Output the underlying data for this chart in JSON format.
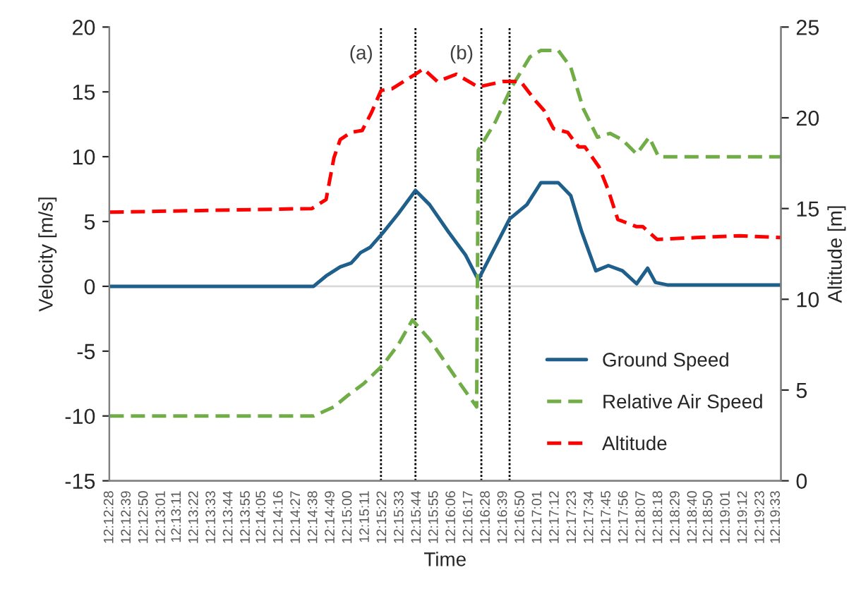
{
  "chart_data": {
    "type": "line",
    "xlabel": "Time",
    "ylabel": "Velocity [m/s]",
    "y2label": "Altitude [m]",
    "xlim": [
      12.20772,
      12.32667
    ],
    "ylim": [
      -15,
      20
    ],
    "yticks": [
      -15,
      -10,
      -5,
      0,
      5,
      10,
      15,
      20
    ],
    "y2lim": [
      0,
      25
    ],
    "y2ticks": [
      0,
      5,
      10,
      15,
      20,
      25
    ],
    "xticks": [
      {
        "value": 12.207778,
        "label": "12:12:28"
      },
      {
        "value": 12.210833,
        "label": "12:12:39"
      },
      {
        "value": 12.213889,
        "label": "12:12:50"
      },
      {
        "value": 12.216944,
        "label": "12:13:01"
      },
      {
        "value": 12.219722,
        "label": "12:13:11"
      },
      {
        "value": 12.222778,
        "label": "12:13:22"
      },
      {
        "value": 12.225833,
        "label": "12:13:33"
      },
      {
        "value": 12.228889,
        "label": "12:13:44"
      },
      {
        "value": 12.231944,
        "label": "12:13:55"
      },
      {
        "value": 12.234722,
        "label": "12:14:05"
      },
      {
        "value": 12.237778,
        "label": "12:14:16"
      },
      {
        "value": 12.240833,
        "label": "12:14:27"
      },
      {
        "value": 12.243889,
        "label": "12:14:38"
      },
      {
        "value": 12.246944,
        "label": "12:14:49"
      },
      {
        "value": 12.25,
        "label": "12:15:00"
      },
      {
        "value": 12.253056,
        "label": "12:15:11"
      },
      {
        "value": 12.256111,
        "label": "12:15:22"
      },
      {
        "value": 12.259167,
        "label": "12:15:33"
      },
      {
        "value": 12.262222,
        "label": "12:15:44"
      },
      {
        "value": 12.265278,
        "label": "12:15:55"
      },
      {
        "value": 12.268333,
        "label": "12:16:06"
      },
      {
        "value": 12.271389,
        "label": "12:16:17"
      },
      {
        "value": 12.274444,
        "label": "12:16:28"
      },
      {
        "value": 12.2775,
        "label": "12:16:39"
      },
      {
        "value": 12.280556,
        "label": "12:16:50"
      },
      {
        "value": 12.283611,
        "label": "12:17:01"
      },
      {
        "value": 12.286667,
        "label": "12:17:12"
      },
      {
        "value": 12.289722,
        "label": "12:17:23"
      },
      {
        "value": 12.292778,
        "label": "12:17:34"
      },
      {
        "value": 12.295833,
        "label": "12:17:45"
      },
      {
        "value": 12.298889,
        "label": "12:17:56"
      },
      {
        "value": 12.301944,
        "label": "12:18:07"
      },
      {
        "value": 12.305,
        "label": "12:18:18"
      },
      {
        "value": 12.308056,
        "label": "12:18:29"
      },
      {
        "value": 12.311111,
        "label": "12:18:40"
      },
      {
        "value": 12.313889,
        "label": "12:18:50"
      },
      {
        "value": 12.316944,
        "label": "12:19:01"
      },
      {
        "value": 12.32,
        "label": "12:19:12"
      },
      {
        "value": 12.323056,
        "label": "12:19:23"
      },
      {
        "value": 12.325833,
        "label": "12:19:33"
      }
    ],
    "series": [
      {
        "name": "Ground Speed",
        "color": "#1f5f8b",
        "line_style": "solid",
        "x": [
          12.20778,
          12.24389,
          12.24611,
          12.24861,
          12.25056,
          12.25222,
          12.25389,
          12.25611,
          12.25889,
          12.26194,
          12.26444,
          12.26778,
          12.27083,
          12.27306,
          12.27861,
          12.28167,
          12.28417,
          12.28722,
          12.28944,
          12.29139,
          12.29389,
          12.29611,
          12.29861,
          12.30111,
          12.30306,
          12.30444,
          12.30667,
          12.32667
        ],
        "values": [
          0,
          0,
          0.8,
          1.5,
          1.8,
          2.6,
          3.0,
          4.1,
          5.6,
          7.4,
          6.3,
          4.2,
          2.4,
          0.5,
          5.2,
          6.3,
          8.0,
          8.0,
          7.0,
          4.2,
          1.2,
          1.6,
          1.2,
          0.2,
          1.4,
          0.3,
          0.1,
          0.1
        ]
      },
      {
        "name": "Relative Air Speed",
        "color": "#70ad47",
        "line_style": "dashed",
        "x": [
          12.20778,
          12.24389,
          12.2475,
          12.25,
          12.25278,
          12.25611,
          12.25889,
          12.26139,
          12.26444,
          12.26917,
          12.27278,
          12.27306,
          12.27611,
          12.27889,
          12.28222,
          12.28417,
          12.28722,
          12.28944,
          12.29167,
          12.29417,
          12.29639,
          12.29861,
          12.30111,
          12.30333,
          12.305,
          12.32667
        ],
        "values": [
          -10,
          -10,
          -9.3,
          -8.4,
          -7.5,
          -6.1,
          -4.5,
          -2.6,
          -4.1,
          -7.1,
          -9.3,
          10.5,
          12.7,
          15.3,
          17.7,
          18.2,
          18.2,
          16.9,
          13.7,
          11.5,
          11.8,
          11.3,
          10.2,
          11.5,
          10,
          10
        ]
      },
      {
        "name": "Altitude",
        "color": "#ff0000",
        "line_style": "dashed",
        "axis": "y2",
        "x": [
          12.20778,
          12.24361,
          12.24611,
          12.2475,
          12.24861,
          12.25056,
          12.2525,
          12.25417,
          12.25583,
          12.25778,
          12.26194,
          12.26333,
          12.26583,
          12.26917,
          12.27306,
          12.2775,
          12.28056,
          12.2833,
          12.28472,
          12.28639,
          12.28889,
          12.29083,
          12.29194,
          12.29444,
          12.29611,
          12.29778,
          12.30111,
          12.30222,
          12.30472,
          12.31167,
          12.31944,
          12.32667
        ],
        "values": [
          14.8,
          15.0,
          15.5,
          17.8,
          18.8,
          19.2,
          19.3,
          20.3,
          21.5,
          21.6,
          22.4,
          22.7,
          22.0,
          22.4,
          21.7,
          22.0,
          22.0,
          20.9,
          20.4,
          19.4,
          19.2,
          18.4,
          18.4,
          17.3,
          16.0,
          14.4,
          14.0,
          14.0,
          13.3,
          13.4,
          13.5,
          13.4
        ]
      }
    ],
    "ref_lines": [
      {
        "axis": "y",
        "value": 0,
        "color": "#d9d9d9",
        "line_style": "solid"
      },
      {
        "axis": "x",
        "value": 12.25583,
        "color": "#000000",
        "line_style": "dotted"
      },
      {
        "axis": "x",
        "value": 12.26194,
        "color": "#000000",
        "line_style": "dotted"
      },
      {
        "axis": "x",
        "value": 12.27361,
        "color": "#000000",
        "line_style": "dotted"
      },
      {
        "axis": "x",
        "value": 12.27861,
        "color": "#000000",
        "line_style": "dotted"
      }
    ],
    "annotations": [
      "(a)",
      "(b)"
    ],
    "legend": "bottom right",
    "grid": false
  }
}
